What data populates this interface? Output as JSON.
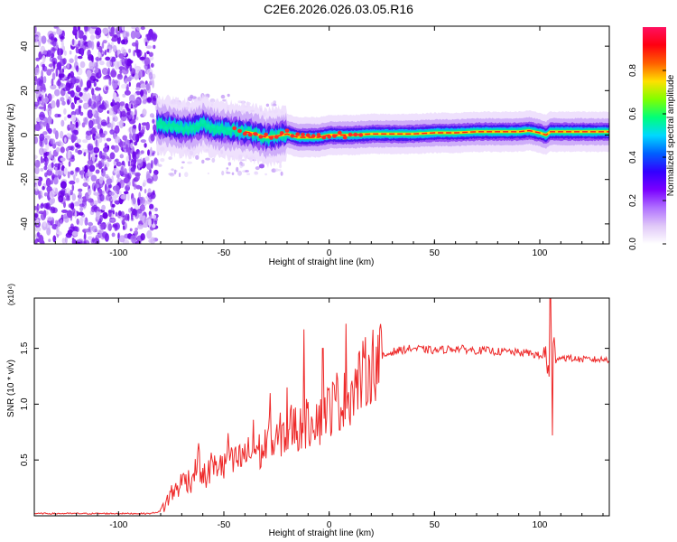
{
  "title": "C2E6.2026.026.03.05.R16",
  "chart_data": [
    {
      "type": "heatmap",
      "xlabel": "Height of straight line (km)",
      "ylabel": "Frequency (Hz)",
      "xlim": [
        -140,
        133
      ],
      "ylim": [
        -49,
        49
      ],
      "x_ticks": [
        -100,
        -50,
        0,
        50,
        100
      ],
      "y_ticks": [
        -40,
        -20,
        0,
        20,
        40
      ],
      "grid": false,
      "colormap": [
        "#ffffff",
        "#e0c8f8",
        "#b070ff",
        "#7a00ff",
        "#3300ff",
        "#0060ff",
        "#00d8ff",
        "#00ff7a",
        "#80ff00",
        "#ffe000",
        "#ff6000",
        "#ff0010",
        "#ff1060"
      ],
      "colorbar": {
        "label": "Normalized spectral amplitude",
        "range": [
          0,
          1
        ],
        "ticks": [
          "0.0",
          "0.2",
          "0.4",
          "0.6",
          "0.8"
        ]
      },
      "noise_region_x": [
        -140,
        -82
      ],
      "ridge": {
        "x": [
          -82,
          -75,
          -70,
          -65,
          -60,
          -55,
          -50,
          -45,
          -40,
          -35,
          -30,
          -25,
          -20,
          -15,
          -10,
          -5,
          0,
          5,
          10,
          20,
          30,
          40,
          50,
          60,
          70,
          80,
          90,
          95,
          100,
          103,
          105,
          110,
          120,
          133
        ],
        "frequency": [
          5,
          4,
          3,
          3,
          5,
          3,
          2.5,
          2,
          1.5,
          0.5,
          -1,
          -0.5,
          0.5,
          -1,
          -1,
          -1,
          0,
          0,
          0,
          0.5,
          0.5,
          0.5,
          1,
          1,
          1.5,
          1.5,
          1.5,
          2,
          1,
          0,
          1.5,
          1.5,
          1.5,
          1.5
        ]
      }
    },
    {
      "type": "line",
      "xlabel": "Height of straight line (km)",
      "ylabel": "SNR (10 * v/v)",
      "y_multiplier": "(x10⁴)",
      "xlim": [
        -140,
        133
      ],
      "ylim": [
        0,
        1.95
      ],
      "x_ticks": [
        -100,
        -50,
        0,
        50,
        100
      ],
      "y_ticks": [
        "0.5",
        "1.0",
        "1.5"
      ],
      "grid": false,
      "color": "#ee2a2a",
      "series": [
        {
          "x": [
            -140,
            -120,
            -100,
            -85,
            -80,
            -78,
            -75,
            -72,
            -70,
            -68,
            -66,
            -64,
            -62,
            -60,
            -58,
            -56,
            -54,
            -52,
            -50,
            -48,
            -46,
            -44,
            -42,
            -40,
            -38,
            -36,
            -34,
            -32,
            -30,
            -28,
            -26,
            -24,
            -22,
            -20,
            -18,
            -16,
            -14,
            -12,
            -10,
            -8,
            -6,
            -4,
            -2,
            0,
            2,
            4,
            6,
            8,
            10,
            12,
            14,
            16,
            18,
            20,
            22,
            25,
            28,
            30,
            33,
            36,
            40,
            45,
            50,
            55,
            60,
            65,
            70,
            75,
            80,
            85,
            90,
            95,
            100,
            103,
            104,
            105,
            106,
            107,
            110,
            115,
            120,
            125,
            133
          ],
          "y": [
            0.02,
            0.02,
            0.02,
            0.02,
            0.04,
            0.1,
            0.2,
            0.25,
            0.3,
            0.35,
            0.3,
            0.4,
            0.45,
            0.35,
            0.35,
            0.45,
            0.42,
            0.5,
            0.4,
            0.55,
            0.45,
            0.5,
            0.5,
            0.55,
            0.55,
            0.6,
            0.6,
            0.55,
            0.65,
            0.7,
            0.6,
            0.7,
            0.75,
            0.7,
            0.8,
            0.8,
            0.75,
            0.85,
            0.8,
            0.9,
            0.9,
            0.85,
            0.95,
            0.95,
            1.0,
            1.05,
            1.0,
            1.05,
            1.1,
            1.15,
            1.2,
            1.25,
            1.3,
            1.35,
            1.38,
            1.42,
            1.45,
            1.47,
            1.48,
            1.49,
            1.5,
            1.49,
            1.48,
            1.49,
            1.5,
            1.49,
            1.48,
            1.48,
            1.47,
            1.47,
            1.46,
            1.46,
            1.43,
            1.42,
            1.4,
            1.38,
            1.4,
            1.42,
            1.42,
            1.41,
            1.4,
            1.4,
            1.4
          ]
        }
      ],
      "spikes": [
        {
          "x": -62,
          "y": 0.65
        },
        {
          "x": -48,
          "y": 0.74
        },
        {
          "x": -36,
          "y": 0.86
        },
        {
          "x": -28,
          "y": 1.1
        },
        {
          "x": -20,
          "y": 1.15
        },
        {
          "x": -12,
          "y": 1.67
        },
        {
          "x": -3,
          "y": 1.5
        },
        {
          "x": 8,
          "y": 1.72
        },
        {
          "x": 105,
          "y": 1.95
        },
        {
          "x": 106,
          "y": 0.72
        }
      ]
    }
  ]
}
